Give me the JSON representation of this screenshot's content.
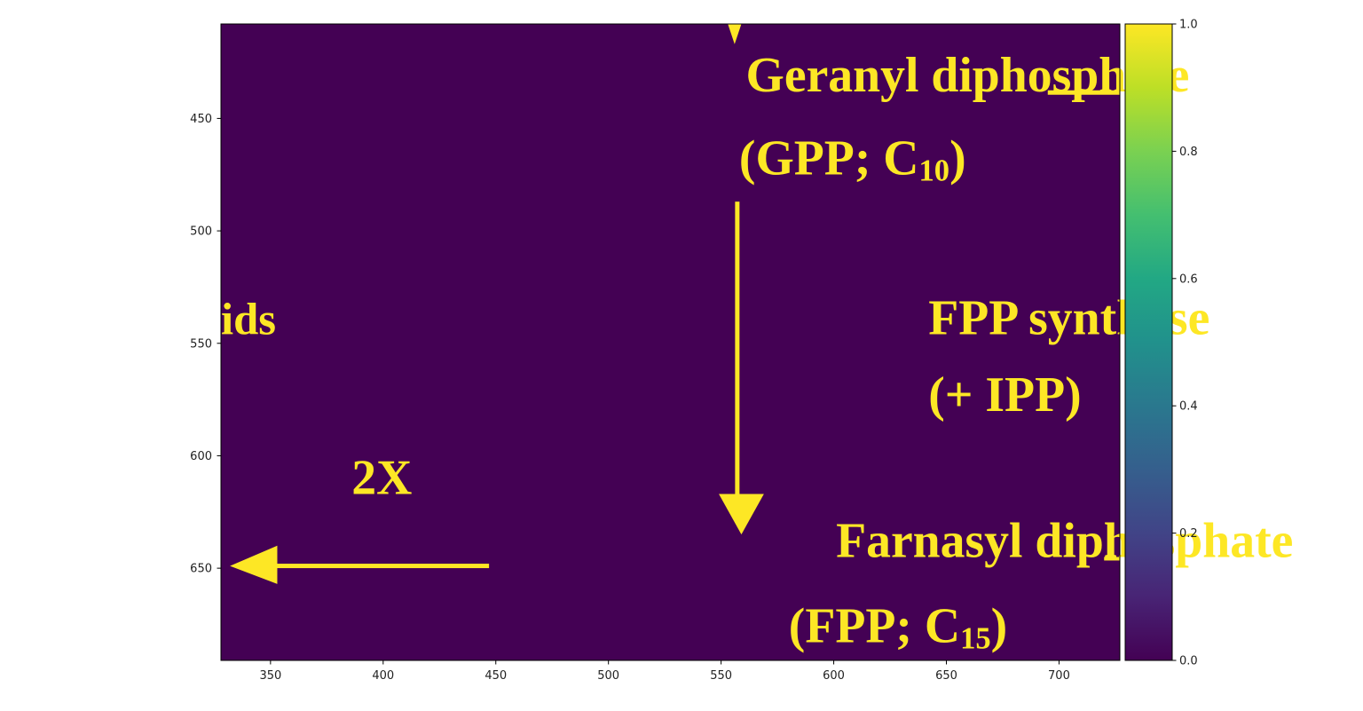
{
  "chart_data": {
    "type": "heatmap",
    "title": "",
    "xlabel": "",
    "ylabel": "",
    "xlim": [
      328,
      727
    ],
    "ylim": [
      691,
      408
    ],
    "x_ticks": [
      350,
      400,
      450,
      500,
      550,
      600,
      650,
      700
    ],
    "y_ticks": [
      450,
      500,
      550,
      600,
      650
    ],
    "colorbar": {
      "colormap": "viridis",
      "range": [
        0.0,
        1.0
      ],
      "ticks": [
        "0.0",
        "0.2",
        "0.4",
        "0.6",
        "0.8",
        "1.0"
      ]
    },
    "background_value": 0.0,
    "foreground_value": 1.0,
    "colors": {
      "background": "#440154",
      "foreground": "#fde725"
    },
    "image_text": [
      {
        "name": "gpp-title",
        "text": "Geranyl diphosphate",
        "x": 561,
        "y": 438,
        "size": 22
      },
      {
        "name": "gpp-formula",
        "text": "(GPP; C10)",
        "x": 558,
        "y": 475,
        "size": 22
      },
      {
        "name": "fpp-synthase",
        "text": "FPP synthase",
        "x": 642,
        "y": 546,
        "size": 22
      },
      {
        "name": "plus-ipp",
        "text": "(+ IPP)",
        "x": 642,
        "y": 580,
        "size": 22
      },
      {
        "name": "ids-fragment",
        "text": "ids",
        "x": 328,
        "y": 546,
        "size": 20
      },
      {
        "name": "two-x",
        "text": "2X",
        "x": 386,
        "y": 617,
        "size": 22
      },
      {
        "name": "fpp-title",
        "text": "Farnasyl diphosphate",
        "x": 601,
        "y": 645,
        "size": 22
      },
      {
        "name": "fpp-formula",
        "text": "(FPP; C15)",
        "x": 580,
        "y": 683,
        "size": 22
      }
    ]
  }
}
